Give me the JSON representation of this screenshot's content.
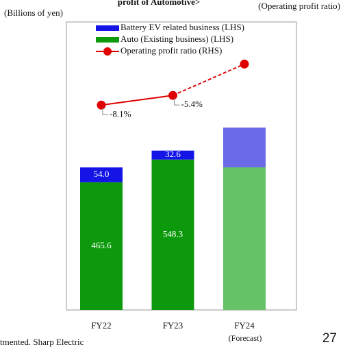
{
  "chart_data": {
    "type": "bar",
    "title": "profit of Automotive>",
    "y_axis_label": "(Billions of yen)",
    "y2_axis_label": "(Operating profit ratio)",
    "categories": [
      "FY22",
      "FY23",
      "FY24"
    ],
    "annotation": "(Forecast)",
    "footnote": "tmented. Sharp Electric",
    "page_number": "27",
    "stacked": true,
    "ylim": [
      0,
      1050
    ],
    "y2lim": [
      -65,
      15
    ],
    "series": [
      {
        "name": "Battery EV related business (LHS)",
        "type": "bar",
        "color": "#1414e6",
        "colors": [
          "#1414e6",
          "#1414e6",
          "#6b6bea"
        ],
        "values": [
          54,
          32.6,
          145
        ],
        "value_labels": [
          "54.0",
          "32.6",
          null
        ]
      },
      {
        "name": "Auto (Existing business) (LHS)",
        "type": "bar",
        "color": "#0c990c",
        "colors": [
          "#0c990c",
          "#0c990c",
          "#66c266"
        ],
        "values": [
          465.6,
          548.3,
          520
        ],
        "value_labels": [
          "465.6",
          "548.3",
          null
        ]
      },
      {
        "name": "Operating profit ratio (RHS)",
        "type": "line",
        "axis": "y2",
        "color": "#e00000",
        "values": [
          -8.1,
          -5.4,
          3.3
        ],
        "value_labels": [
          "-8.1%",
          "-5.4%",
          null
        ]
      }
    ]
  }
}
